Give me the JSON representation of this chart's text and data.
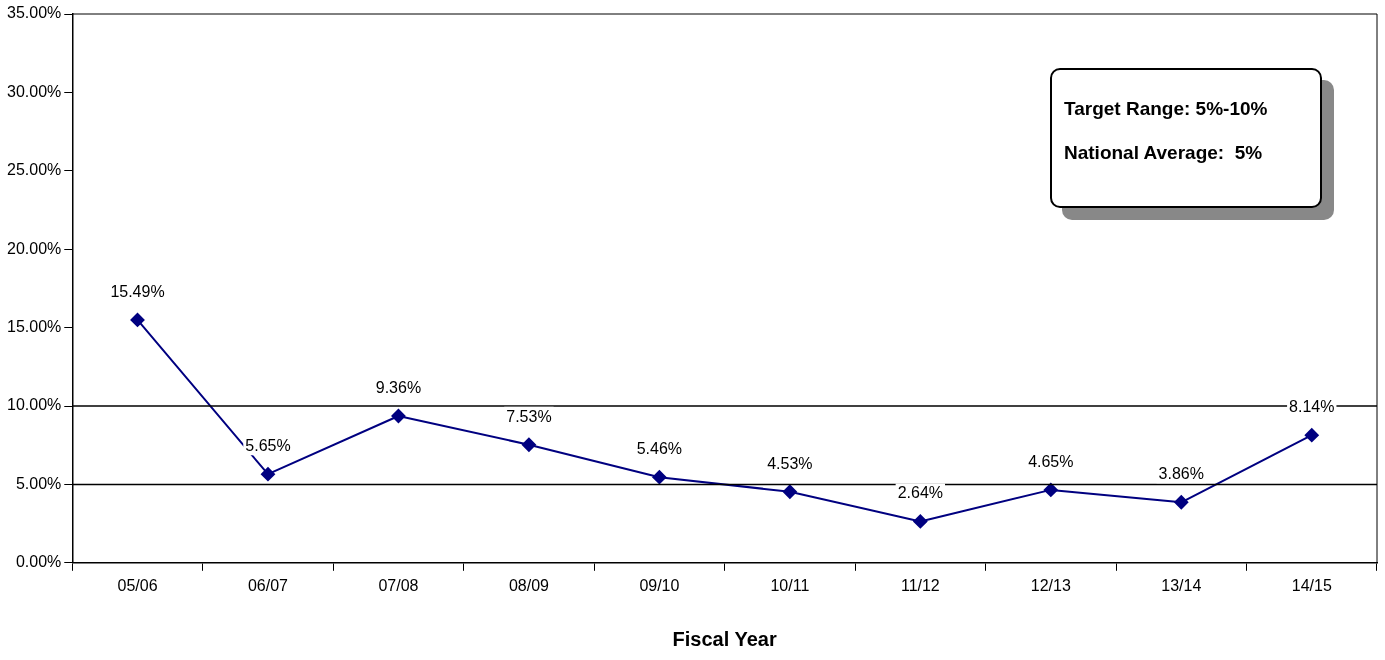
{
  "chart_data": {
    "type": "line",
    "xlabel": "Fiscal Year",
    "categories": [
      "05/06",
      "06/07",
      "07/08",
      "08/09",
      "09/10",
      "10/11",
      "11/12",
      "12/13",
      "13/14",
      "14/15"
    ],
    "series": [
      {
        "color": "#000080",
        "values": [
          15.49,
          5.65,
          9.36,
          7.53,
          5.46,
          4.53,
          2.64,
          4.65,
          3.86,
          8.14
        ],
        "value_labels": [
          "15.49%",
          "5.65%",
          "9.36%",
          "7.53%",
          "5.46%",
          "4.53%",
          "2.64%",
          "4.65%",
          "3.86%",
          "8.14%"
        ]
      }
    ],
    "ylim": [
      0,
      35
    ],
    "yticks": [
      {
        "value": 0,
        "label": "0.00%"
      },
      {
        "value": 5,
        "label": "5.00%"
      },
      {
        "value": 10,
        "label": "10.00%"
      },
      {
        "value": 15,
        "label": "15.00%"
      },
      {
        "value": 20,
        "label": "20.00%"
      },
      {
        "value": 25,
        "label": "25.00%"
      },
      {
        "value": 30,
        "label": "30.00%"
      },
      {
        "value": 35,
        "label": "35.00%"
      }
    ],
    "ref_lines": [
      {
        "axis": "y",
        "value": 10,
        "color": "#000000"
      },
      {
        "axis": "y",
        "value": 5,
        "color": "#000000"
      }
    ],
    "annotations": [
      "Target Range: 5%-10%",
      "National Average:  5%"
    ],
    "marker": "diamond",
    "line_style": "solid",
    "grid": false,
    "legend": false
  }
}
